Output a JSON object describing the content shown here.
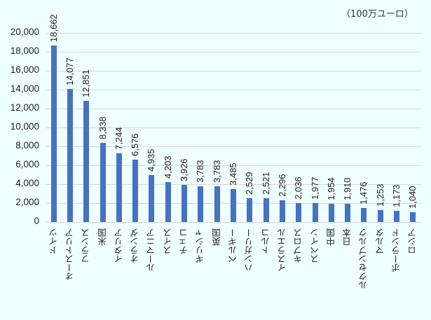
{
  "unit_label": "（100万ユーロ）",
  "colors": {
    "bar": "#4472c4",
    "background": "#f0ffff",
    "grid": "#d6d6d6"
  },
  "y_ticks": [
    "20,000",
    "18,000",
    "16,000",
    "14,000",
    "12,000",
    "10,000",
    "8,000",
    "6,000",
    "4,000",
    "2,000",
    "0"
  ],
  "chart_data": {
    "type": "bar",
    "title": "",
    "xlabel": "",
    "ylabel": "",
    "unit": "（100万ユーロ）",
    "ylim": [
      0,
      20000
    ],
    "grid": true,
    "legend": null,
    "categories": [
      "ドイツ",
      "オーストリア",
      "フランス",
      "米国",
      "イタリア",
      "オランダ",
      "ルーマニア",
      "スイス",
      "チェコ",
      "ギリシャ",
      "英国",
      "ベルギー",
      "ハンガリー",
      "トルコ",
      "イスラエル",
      "キプロス",
      "スペイン",
      "中国",
      "日本",
      "ルクセンブルク",
      "マルタ",
      "ポーランド",
      "ロシア"
    ],
    "values": [
      18662,
      14077,
      12851,
      8338,
      7244,
      6576,
      4935,
      4203,
      3926,
      3783,
      3783,
      3485,
      2529,
      2521,
      2296,
      2036,
      1977,
      1954,
      1910,
      1476,
      1253,
      1173,
      1040
    ],
    "data_labels": [
      "18,662",
      "14,077",
      "12,851",
      "8,338",
      "7,244",
      "6,576",
      "4,935",
      "4,203",
      "3,926",
      "3,783",
      "3,783",
      "3,485",
      "2,529",
      "2,521",
      "2,296",
      "2,036",
      "1,977",
      "1,954",
      "1,910",
      "1,476",
      "1,253",
      "1,173",
      "1,040"
    ]
  }
}
